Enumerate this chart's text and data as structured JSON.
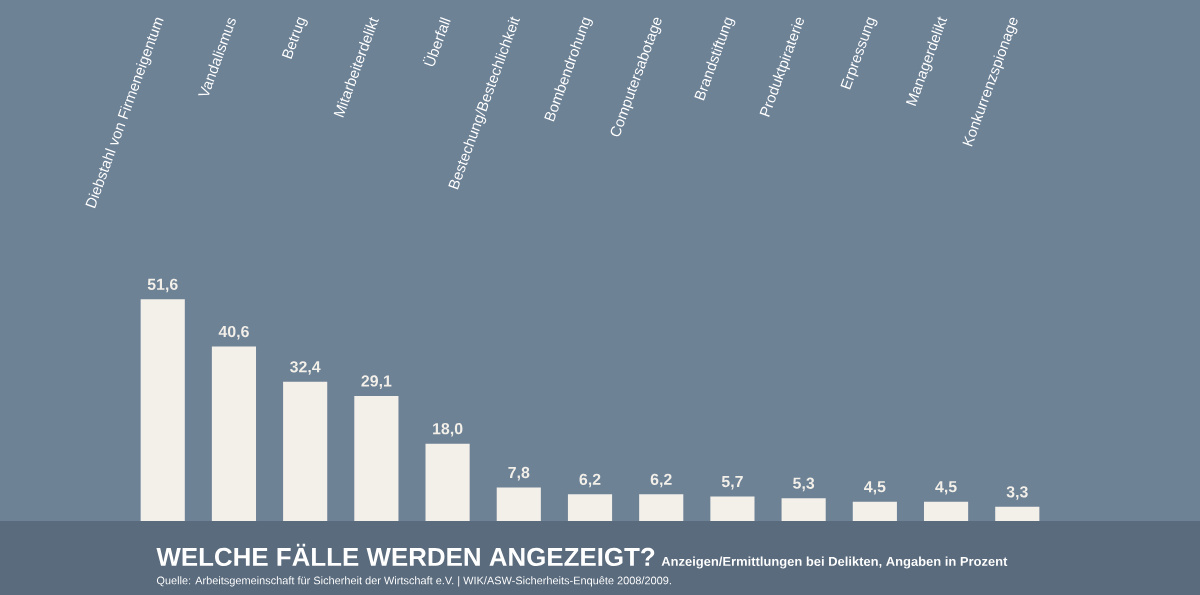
{
  "chart_data": {
    "type": "bar",
    "title": "WELCHE FÄLLE WERDEN ANGEZEIGT?",
    "subtitle": "Anzeigen/Ermittlungen bei Delikten, Angaben in Prozent",
    "annotations": [
      "Quelle: Arbeitsgemeinschaft für Sicherheit der Wirtschaft e.V. | WIK/ASW-Sicherheits-Enquête 2008/2009."
    ],
    "categories": [
      "Diebstahl von Firmeneigentum",
      "Vandalismus",
      "Betrug",
      "Mitarbeiterdelikt",
      "Überfall",
      "Bestechung/Bestechlichkeit",
      "Bombendrohung",
      "Computersabotage",
      "Brandstiftung",
      "Produktpiraterie",
      "Erpressung",
      "Managerdelikt",
      "Konkurrenzspionage"
    ],
    "values": [
      51.6,
      40.6,
      32.4,
      29.1,
      18.0,
      7.8,
      6.2,
      6.2,
      5.7,
      5.3,
      4.5,
      4.5,
      3.3
    ],
    "value_labels": [
      "51,6",
      "40,6",
      "32,4",
      "29,1",
      "18,0",
      "7,8",
      "6,2",
      "6,2",
      "5,7",
      "5,3",
      "4,5",
      "4,5",
      "3,3"
    ],
    "color": "#f3efe9"
  }
}
